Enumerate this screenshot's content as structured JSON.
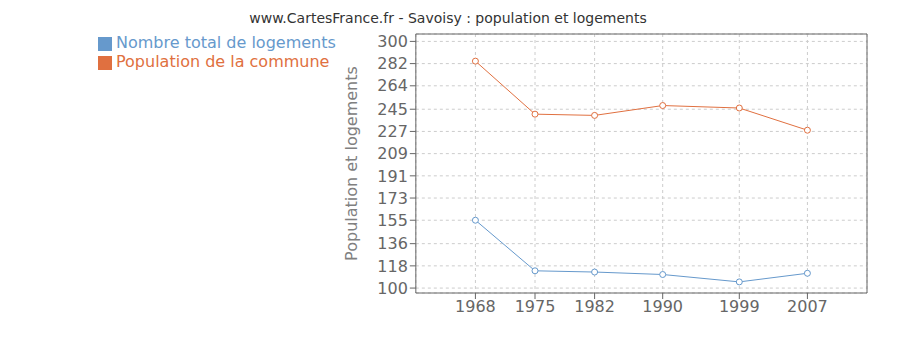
{
  "chart_data": {
    "type": "line",
    "title": "www.CartesFrance.fr - Savoisy : population et logements",
    "ylabel": "Population et logements",
    "x": [
      1968,
      1975,
      1982,
      1990,
      1999,
      2007
    ],
    "xlim": [
      1961,
      2014
    ],
    "xticks": [
      1968,
      1975,
      1982,
      1990,
      1999,
      2007
    ],
    "ylim": [
      96,
      306
    ],
    "yticks": [
      100,
      118,
      136,
      155,
      173,
      191,
      209,
      227,
      245,
      264,
      282,
      300
    ],
    "grid": true,
    "legend": "top",
    "series": [
      {
        "name": "Nombre total de logements",
        "color": "#6699cc",
        "marker": "circle",
        "values": [
          155,
          114,
          113,
          111,
          105,
          112
        ]
      },
      {
        "name": "Population de la commune",
        "color": "#e07040",
        "marker": "circle",
        "values": [
          284,
          241,
          240,
          248,
          246,
          228
        ]
      }
    ]
  }
}
